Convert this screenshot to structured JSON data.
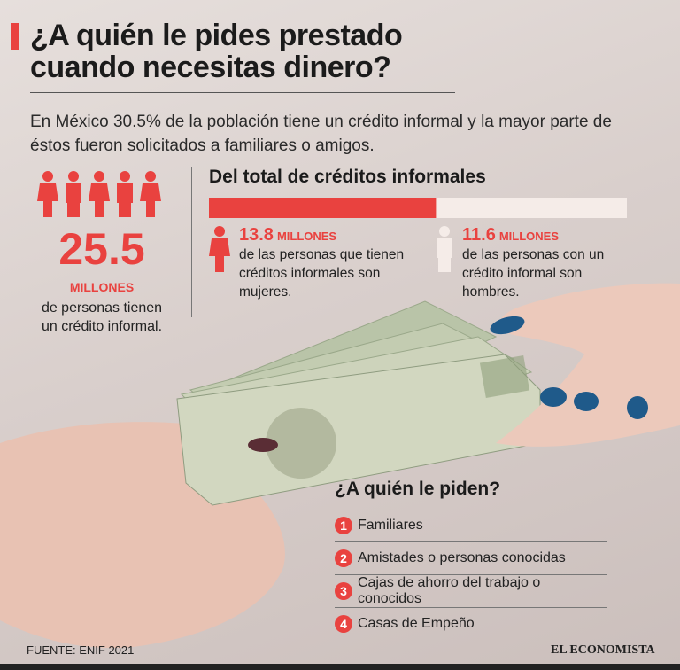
{
  "header": {
    "title": "¿A quién le pides prestado cuando necesitas dinero?",
    "intro": "En México 30.5% de la población tiene un crédito informal y la mayor parte de éstos fueron solicitados a familiares o amigos."
  },
  "total": {
    "value": 25.5,
    "unit": "MILLONES",
    "text": "de personas tienen un crédito informal."
  },
  "breakdown": {
    "title": "Del total de créditos informales",
    "women": {
      "value": 13.8,
      "unit": "MILLONES",
      "text": "de las personas que tienen créditos informales son mujeres.",
      "color": "#e9423f"
    },
    "men": {
      "value": 11.6,
      "unit": "MILLONES",
      "text": "de las personas con un crédito informal son hombres.",
      "color": "#f5ece8"
    }
  },
  "lenders": {
    "title": "¿A quién le piden?",
    "items": [
      {
        "num": "1",
        "label": "Familiares"
      },
      {
        "num": "2",
        "label": "Amistades o personas conocidas"
      },
      {
        "num": "3",
        "label": "Cajas de ahorro del trabajo o conocidos"
      },
      {
        "num": "4",
        "label": "Casas de Empeño"
      }
    ]
  },
  "footer": {
    "source": "FUENTE: ENIF 2021",
    "brand": "EL ECONOMISTA"
  }
}
